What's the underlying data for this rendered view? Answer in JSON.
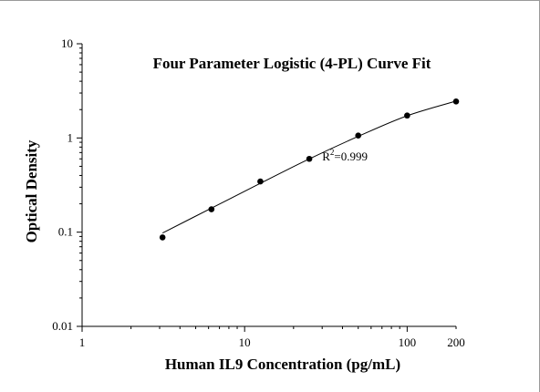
{
  "chart_data": {
    "type": "scatter",
    "title": "Four Parameter Logistic (4-PL) Curve Fit",
    "xlabel": "Human IL9 Concentration (pg/mL)",
    "ylabel": "Optical Density",
    "x_scale": "log",
    "y_scale": "log",
    "xlim": [
      1,
      200
    ],
    "ylim": [
      0.01,
      10
    ],
    "x_ticks": [
      {
        "value": 1,
        "label": "1"
      },
      {
        "value": 10,
        "label": "10"
      },
      {
        "value": 100,
        "label": "100"
      },
      {
        "value": 200,
        "label": "200"
      }
    ],
    "y_ticks": [
      {
        "value": 0.01,
        "label": "0.01"
      },
      {
        "value": 0.1,
        "label": "0.1"
      },
      {
        "value": 1,
        "label": "1"
      },
      {
        "value": 10,
        "label": "10"
      }
    ],
    "grid": false,
    "series": [
      {
        "points": [
          {
            "x": 3.125,
            "y": 0.088
          },
          {
            "x": 6.25,
            "y": 0.175
          },
          {
            "x": 12.5,
            "y": 0.345
          },
          {
            "x": 25,
            "y": 0.6
          },
          {
            "x": 50,
            "y": 1.06
          },
          {
            "x": 100,
            "y": 1.73
          },
          {
            "x": 200,
            "y": 2.44
          }
        ]
      }
    ],
    "fit_curve": {
      "model": "4PL",
      "x_range": [
        3.125,
        200
      ],
      "points": [
        {
          "x": 3.125,
          "y": 0.098
        },
        {
          "x": 6.25,
          "y": 0.18
        },
        {
          "x": 12.5,
          "y": 0.33
        },
        {
          "x": 25,
          "y": 0.6
        },
        {
          "x": 50,
          "y": 1.04
        },
        {
          "x": 100,
          "y": 1.72
        },
        {
          "x": 200,
          "y": 2.46
        }
      ]
    },
    "annotation": {
      "text_base": "R",
      "text_sup": "2",
      "text_rest": "=0.999",
      "x": 30,
      "y": 0.63
    }
  }
}
